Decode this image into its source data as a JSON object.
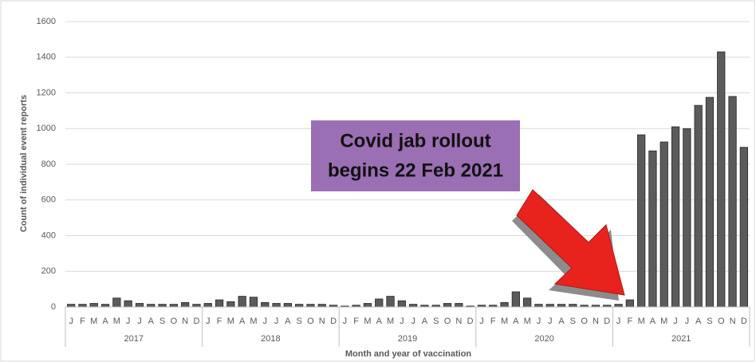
{
  "chart_data": {
    "type": "bar",
    "y_label": "Count of individual event reports",
    "x_label": "Month and year of vaccination",
    "annotation": [
      "Covid jab rollout",
      "begins 22 Feb 2021"
    ],
    "categories": [
      "J",
      "F",
      "M",
      "A",
      "M",
      "J",
      "J",
      "A",
      "S",
      "O",
      "N",
      "D",
      "J",
      "F",
      "M",
      "A",
      "M",
      "J",
      "J",
      "A",
      "S",
      "O",
      "N",
      "D",
      "J",
      "F",
      "M",
      "A",
      "M",
      "J",
      "J",
      "A",
      "S",
      "O",
      "N",
      "D",
      "J",
      "F",
      "M",
      "A",
      "M",
      "J",
      "J",
      "A",
      "S",
      "O",
      "N",
      "D",
      "J",
      "F",
      "M",
      "A",
      "M",
      "J",
      "J",
      "A",
      "S",
      "O",
      "N",
      "D"
    ],
    "groups": [
      "2017",
      "2018",
      "2019",
      "2020",
      "2021"
    ],
    "values": [
      15,
      15,
      20,
      15,
      50,
      35,
      20,
      15,
      15,
      15,
      25,
      15,
      20,
      40,
      30,
      60,
      55,
      25,
      20,
      20,
      15,
      15,
      15,
      10,
      5,
      10,
      20,
      45,
      60,
      35,
      15,
      10,
      10,
      20,
      20,
      5,
      10,
      10,
      25,
      85,
      50,
      15,
      15,
      15,
      15,
      10,
      10,
      10,
      15,
      40,
      965,
      875,
      925,
      1010,
      1000,
      1130,
      1175,
      1430,
      1180,
      895
    ],
    "color": "#5b5b5b",
    "ylim": [
      0,
      1600
    ],
    "yticks": [
      0,
      200,
      400,
      600,
      800,
      1000,
      1200,
      1400,
      1600
    ],
    "grid": true
  }
}
